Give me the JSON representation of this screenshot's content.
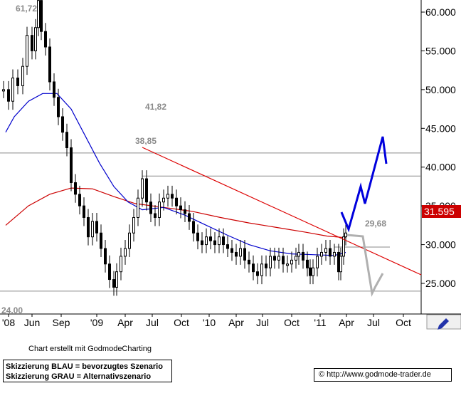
{
  "chart_data": {
    "type": "candlestick",
    "y_ticks": [
      "60.000",
      "55.000",
      "50.000",
      "45.000",
      "40.000",
      "35.000",
      "30.000",
      "25.000"
    ],
    "y_tick_values": [
      60000,
      55000,
      50000,
      45000,
      40000,
      35000,
      30000,
      25000
    ],
    "x_ticks": [
      "'08",
      "Jun",
      "Sep",
      "'09",
      "Apr",
      "Jul",
      "Oct",
      "'10",
      "Apr",
      "Jul",
      "Oct",
      "'11",
      "Apr",
      "Jul",
      "Oct"
    ],
    "current_price_label": "31.595",
    "levels": [
      {
        "label": "61,72",
        "value": 61720
      },
      {
        "label": "41,82",
        "value": 41820
      },
      {
        "label": "38,85",
        "value": 38850
      },
      {
        "label": "29,68",
        "value": 29680
      },
      {
        "label": "24.00",
        "value": 24000
      }
    ],
    "grid": false,
    "colors": {
      "candles": "#000000",
      "ma_short": "#0000cc",
      "ma_long": "#cc0000",
      "trendline": "#dd0000",
      "support_lines": "#8a8a8a",
      "scenario_blue": "#0000dd",
      "scenario_grey": "#b0b0b0",
      "price_box": "#cc0000"
    }
  },
  "footer": {
    "caption": "Chart erstellt mit GodmodeCharting",
    "legend_line1": "Skizzierung BLAU = bevorzugtes Szenario",
    "legend_line2": "Skizzierung GRAU = Alternativszenario",
    "url": "© http://www.godmode-trader.de"
  },
  "icons": {
    "corner": "pencil-icon"
  }
}
